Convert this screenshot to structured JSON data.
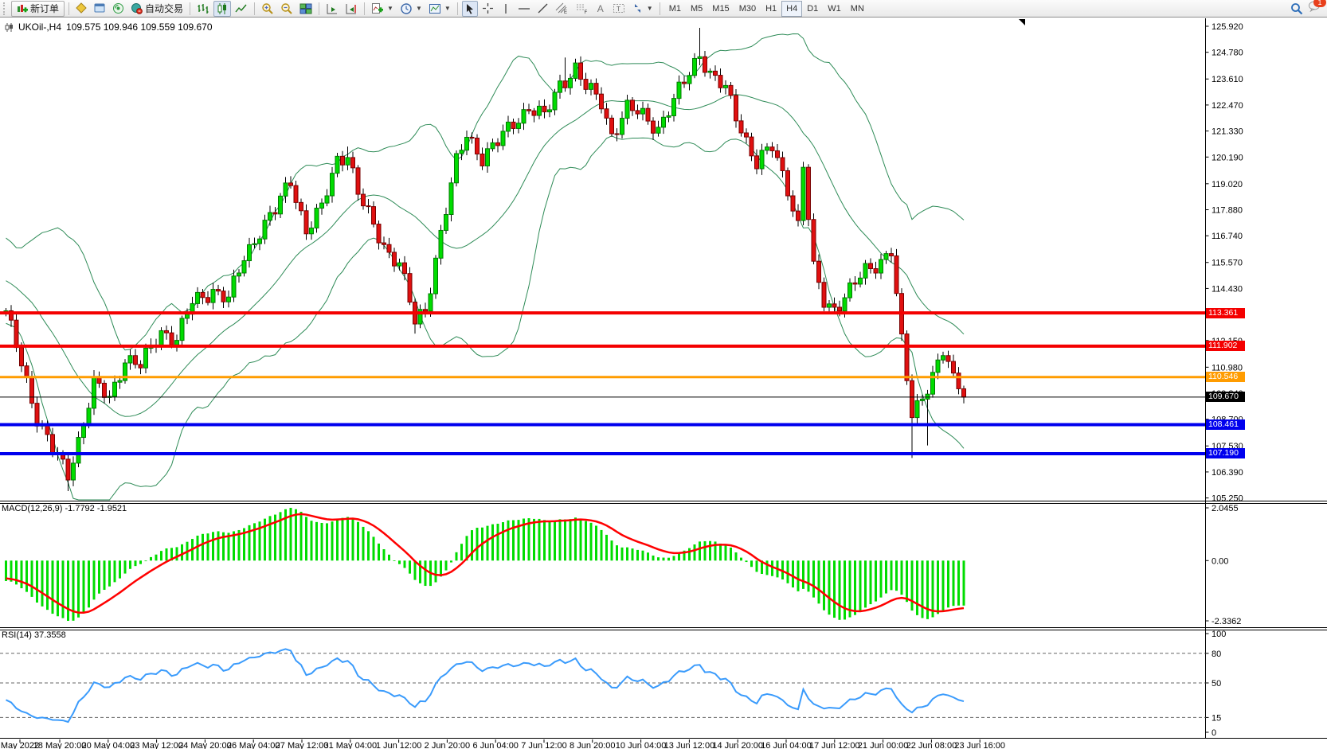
{
  "toolbar": {
    "new_order_label": "新订单",
    "auto_trading_label": "自动交易",
    "timeframes": [
      "M1",
      "M5",
      "M15",
      "M30",
      "H1",
      "H4",
      "D1",
      "W1",
      "MN"
    ],
    "active_timeframe": "H4",
    "notification_count": "1",
    "drawing_tool_letters": {
      "channel": "E",
      "fibo": "F",
      "text": "A",
      "label": "T"
    }
  },
  "chart": {
    "title_symbol": "UKOil-,H4",
    "title_ohlc": "109.575 109.946 109.559 109.670"
  },
  "indicators": {
    "macd": {
      "label": "MACD(12,26,9)",
      "value1": "-1.7792",
      "value2": "-1.9521"
    },
    "rsi": {
      "label": "RSI(14)",
      "value": "37.3558"
    }
  },
  "chart_data": {
    "type": "candlestick",
    "symbol": "UKOil-",
    "period": "H4",
    "ohlc_display": {
      "open": 109.575,
      "high": 109.946,
      "low": 109.559,
      "close": 109.67
    },
    "bars_total": 186,
    "price_axis_ticks": [
      125.92,
      124.78,
      123.61,
      122.47,
      121.33,
      120.19,
      119.02,
      117.88,
      116.74,
      115.57,
      114.43,
      113.29,
      112.15,
      110.98,
      109.84,
      108.7,
      107.53,
      106.39,
      105.25
    ],
    "time_axis_labels": [
      "May 2022",
      "18 May 20:00",
      "20 May 04:00",
      "23 May 12:00",
      "24 May 20:00",
      "26 May 04:00",
      "27 May 12:00",
      "31 May 04:00",
      "1 Jun 12:00",
      "2 Jun 20:00",
      "6 Jun 04:00",
      "7 Jun 12:00",
      "8 Jun 20:00",
      "10 Jun 04:00",
      "13 Jun 12:00",
      "14 Jun 20:00",
      "16 Jun 04:00",
      "17 Jun 12:00",
      "21 Jun 00:00",
      "22 Jun 08:00",
      "23 Jun 16:00"
    ],
    "horizontal_lines": [
      {
        "price": 113.361,
        "color": "#f40000",
        "width": 4
      },
      {
        "price": 111.902,
        "color": "#f40000",
        "width": 4
      },
      {
        "price": 110.546,
        "color": "#ff9c00",
        "width": 3
      },
      {
        "price": 109.67,
        "color": "#000000",
        "width": 1
      },
      {
        "price": 108.461,
        "color": "#0000ee",
        "width": 4
      },
      {
        "price": 107.19,
        "color": "#0000ee",
        "width": 4
      }
    ],
    "macd_scale": {
      "top": 2.0455,
      "zero": 0.0,
      "bottom": -2.3362
    },
    "rsi_scale": [
      100,
      80,
      50,
      15,
      0
    ],
    "rsi_dashed_levels": [
      80,
      50,
      15
    ],
    "close_waypoints": [
      [
        0,
        113.3
      ],
      [
        3,
        111.2
      ],
      [
        6,
        108.8
      ],
      [
        9,
        107.3
      ],
      [
        12,
        106.3
      ],
      [
        14,
        107.8
      ],
      [
        17,
        110.2
      ],
      [
        20,
        109.6
      ],
      [
        23,
        111.4
      ],
      [
        26,
        111.0
      ],
      [
        30,
        112.6
      ],
      [
        33,
        112.2
      ],
      [
        36,
        113.8
      ],
      [
        40,
        114.4
      ],
      [
        43,
        113.9
      ],
      [
        46,
        115.8
      ],
      [
        49,
        117.0
      ],
      [
        52,
        117.8
      ],
      [
        55,
        119.2
      ],
      [
        58,
        117.0
      ],
      [
        61,
        117.9
      ],
      [
        64,
        120.1
      ],
      [
        66,
        120.4
      ],
      [
        68,
        118.6
      ],
      [
        71,
        117.1
      ],
      [
        74,
        116.0
      ],
      [
        76,
        115.6
      ],
      [
        79,
        112.9
      ],
      [
        81,
        113.5
      ],
      [
        84,
        116.9
      ],
      [
        87,
        119.9
      ],
      [
        89,
        121.2
      ],
      [
        92,
        120.2
      ],
      [
        95,
        120.8
      ],
      [
        98,
        121.7
      ],
      [
        101,
        122.4
      ],
      [
        104,
        121.9
      ],
      [
        107,
        123.4
      ],
      [
        110,
        124.1
      ],
      [
        112,
        123.2
      ],
      [
        115,
        122.6
      ],
      [
        117,
        121.2
      ],
      [
        120,
        122.3
      ],
      [
        123,
        122.0
      ],
      [
        126,
        121.5
      ],
      [
        129,
        122.6
      ],
      [
        132,
        123.9
      ],
      [
        134,
        124.8
      ],
      [
        136,
        123.8
      ],
      [
        139,
        123.1
      ],
      [
        142,
        121.5
      ],
      [
        145,
        119.9
      ],
      [
        148,
        120.6
      ],
      [
        151,
        118.9
      ],
      [
        153,
        117.2
      ],
      [
        154,
        119.8
      ],
      [
        156,
        115.2
      ],
      [
        158,
        113.9
      ],
      [
        160,
        113.6
      ],
      [
        163,
        114.3
      ],
      [
        166,
        115.2
      ],
      [
        169,
        115.7
      ],
      [
        171,
        116.1
      ],
      [
        173,
        112.0
      ],
      [
        175,
        108.9
      ],
      [
        177,
        109.8
      ],
      [
        179,
        110.6
      ],
      [
        181,
        111.6
      ],
      [
        183,
        110.4
      ],
      [
        185,
        109.67
      ]
    ],
    "wick_lows": {
      "12": 105.55,
      "79": 112.45,
      "175": 107.0,
      "178": 107.55
    },
    "wick_highs": {
      "66": 120.65,
      "108": 124.55,
      "110": 124.5,
      "134": 125.85
    },
    "colors": {
      "candle_up": "#00dc00",
      "candle_up_border": "#007a00",
      "candle_down": "#e01010",
      "candle_down_border": "#7a0000",
      "wick": "#000000",
      "bollinger": "#2e8b57",
      "macd_hist": "#00dc00",
      "macd_signal": "#ff0000",
      "rsi_line": "#3a9bfc"
    }
  }
}
